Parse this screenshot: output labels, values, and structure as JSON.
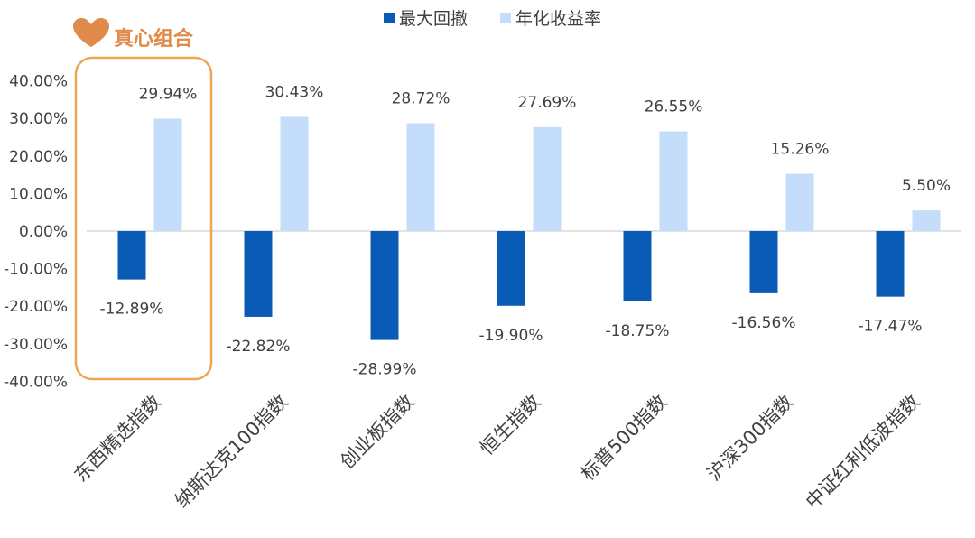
{
  "colors": {
    "drawdown": "#0a5bb5",
    "annual_return": "#c3ddfb",
    "highlight": "#f0a553",
    "badge": "#e08a4c"
  },
  "badge": {
    "label": "真心组合",
    "icon": "heart-icon"
  },
  "chart_data": {
    "type": "bar",
    "categories": [
      "东西精选指数",
      "纳斯达克100指数",
      "创业板指数",
      "恒生指数",
      "标普500指数",
      "沪深300指数",
      "中证红利低波指数"
    ],
    "series": [
      {
        "name": "最大回撤",
        "values": [
          -12.89,
          -22.82,
          -28.99,
          -19.9,
          -18.75,
          -16.56,
          -17.47
        ],
        "labels": [
          "-12.89%",
          "-22.82%",
          "-28.99%",
          "-19.90%",
          "-18.75%",
          "-16.56%",
          "-17.47%"
        ]
      },
      {
        "name": "年化收益率",
        "values": [
          29.94,
          30.43,
          28.72,
          27.69,
          26.55,
          15.26,
          5.5
        ],
        "labels": [
          "29.94%",
          "30.43%",
          "28.72%",
          "27.69%",
          "26.55%",
          "15.26%",
          "5.50%"
        ]
      }
    ],
    "yticks": [
      "40.00%",
      "30.00%",
      "20.00%",
      "10.00%",
      "0.00%",
      "-10.00%",
      "-20.00%",
      "-30.00%",
      "-40.00%"
    ],
    "ylim": [
      -40,
      40
    ],
    "legend_position": "top",
    "grid": false,
    "highlighted_category": "东西精选指数"
  }
}
